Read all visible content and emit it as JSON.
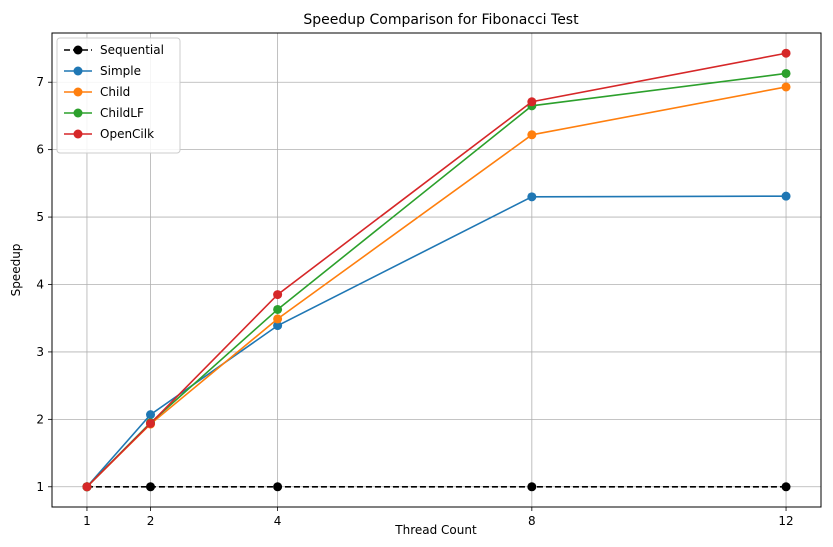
{
  "chart_data": {
    "type": "line",
    "title": "Speedup Comparison for Fibonacci Test",
    "xlabel": "Thread Count",
    "ylabel": "Speedup",
    "x": [
      1,
      2,
      4,
      8,
      12
    ],
    "xticks": [
      1,
      2,
      4,
      8,
      12
    ],
    "yticks": [
      1,
      2,
      3,
      4,
      5,
      6,
      7
    ],
    "xlim": [
      0.45,
      12.55
    ],
    "ylim": [
      0.7,
      7.73
    ],
    "grid": true,
    "legend_position": "top-left",
    "series": [
      {
        "name": "Sequential",
        "values": [
          1,
          1,
          1,
          1,
          1
        ],
        "color": "#000000",
        "dashed": true
      },
      {
        "name": "Simple",
        "values": [
          1.0,
          2.07,
          3.39,
          5.3,
          5.31
        ],
        "color": "#1f77b4",
        "dashed": false
      },
      {
        "name": "Child",
        "values": [
          1.0,
          1.93,
          3.49,
          6.22,
          6.93
        ],
        "color": "#ff7f0e",
        "dashed": false
      },
      {
        "name": "ChildLF",
        "values": [
          1.0,
          1.95,
          3.63,
          6.65,
          7.13
        ],
        "color": "#2ca02c",
        "dashed": false
      },
      {
        "name": "OpenCilk",
        "values": [
          1.0,
          1.94,
          3.85,
          6.71,
          7.43
        ],
        "color": "#d62728",
        "dashed": false
      }
    ]
  }
}
